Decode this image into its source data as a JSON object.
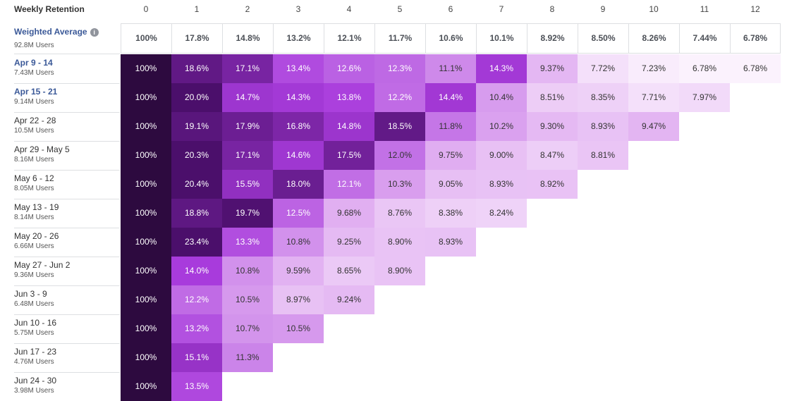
{
  "table": {
    "title": "Weekly Retention",
    "columns": [
      "0",
      "1",
      "2",
      "3",
      "4",
      "5",
      "6",
      "7",
      "8",
      "9",
      "10",
      "11",
      "12"
    ]
  },
  "average": {
    "label": "Weighted Average",
    "users": "92.8M Users",
    "info_icon": "info-icon",
    "values": [
      "100%",
      "17.8%",
      "14.8%",
      "13.2%",
      "12.1%",
      "11.7%",
      "10.6%",
      "10.1%",
      "8.92%",
      "8.50%",
      "8.26%",
      "7.44%",
      "6.78%"
    ]
  },
  "chart_data": {
    "type": "heatmap",
    "title": "Weekly Retention",
    "xlabel": "",
    "ylabel": "",
    "x": [
      "0",
      "1",
      "2",
      "3",
      "4",
      "5",
      "6",
      "7",
      "8",
      "9",
      "10",
      "11",
      "12"
    ],
    "y": [
      "Apr 9 - 14",
      "Apr 15 - 21",
      "Apr 22 - 28",
      "Apr 29 - May 5",
      "May 6 - 12",
      "May 13 - 19",
      "May 20 - 26",
      "May 27 - Jun 2",
      "Jun 3 - 9",
      "Jun 10 - 16",
      "Jun 17 - 23",
      "Jun 24 - 30"
    ],
    "rows": [
      {
        "label": "Apr 9 - 14",
        "users": "7.43M Users",
        "link": true,
        "values": [
          "100%",
          "18.6%",
          "17.1%",
          "13.4%",
          "12.6%",
          "12.3%",
          "11.1%",
          "14.3%",
          "9.37%",
          "7.72%",
          "7.23%",
          "6.78%",
          "6.78%"
        ]
      },
      {
        "label": "Apr 15 - 21",
        "users": "9.14M Users",
        "link": true,
        "values": [
          "100%",
          "20.0%",
          "14.7%",
          "14.3%",
          "13.8%",
          "12.2%",
          "14.4%",
          "10.4%",
          "8.51%",
          "8.35%",
          "7.71%",
          "7.97%"
        ]
      },
      {
        "label": "Apr 22 - 28",
        "users": "10.5M Users",
        "link": false,
        "values": [
          "100%",
          "19.1%",
          "17.9%",
          "16.8%",
          "14.8%",
          "18.5%",
          "11.8%",
          "10.2%",
          "9.30%",
          "8.93%",
          "9.47%"
        ]
      },
      {
        "label": "Apr 29 - May 5",
        "users": "8.16M Users",
        "link": false,
        "values": [
          "100%",
          "20.3%",
          "17.1%",
          "14.6%",
          "17.5%",
          "12.0%",
          "9.75%",
          "9.00%",
          "8.47%",
          "8.81%"
        ]
      },
      {
        "label": "May 6 - 12",
        "users": "8.05M Users",
        "link": false,
        "values": [
          "100%",
          "20.4%",
          "15.5%",
          "18.0%",
          "12.1%",
          "10.3%",
          "9.05%",
          "8.93%",
          "8.92%"
        ]
      },
      {
        "label": "May 13 - 19",
        "users": "8.14M Users",
        "link": false,
        "values": [
          "100%",
          "18.8%",
          "19.7%",
          "12.5%",
          "9.68%",
          "8.76%",
          "8.38%",
          "8.24%"
        ]
      },
      {
        "label": "May 20 - 26",
        "users": "6.66M Users",
        "link": false,
        "values": [
          "100%",
          "23.4%",
          "13.3%",
          "10.8%",
          "9.25%",
          "8.90%",
          "8.93%"
        ]
      },
      {
        "label": "May 27 - Jun 2",
        "users": "9.36M Users",
        "link": false,
        "values": [
          "100%",
          "14.0%",
          "10.8%",
          "9.59%",
          "8.65%",
          "8.90%"
        ]
      },
      {
        "label": "Jun 3 - 9",
        "users": "6.48M Users",
        "link": false,
        "values": [
          "100%",
          "12.2%",
          "10.5%",
          "8.97%",
          "9.24%"
        ]
      },
      {
        "label": "Jun 10 - 16",
        "users": "5.75M Users",
        "link": false,
        "values": [
          "100%",
          "13.2%",
          "10.7%",
          "10.5%"
        ]
      },
      {
        "label": "Jun 17 - 23",
        "users": "4.76M Users",
        "link": false,
        "values": [
          "100%",
          "15.1%",
          "11.3%"
        ]
      },
      {
        "label": "Jun 24 - 30",
        "users": "3.98M Users",
        "link": false,
        "values": [
          "100%",
          "13.5%"
        ]
      }
    ],
    "color_scale": {
      "low": "#fbf2fd",
      "mid_light": "#e3b4f2",
      "mid": "#a83bdc",
      "high": "#4b0f6b",
      "full": "#2d0a3f"
    },
    "grid": false,
    "legend": "none"
  }
}
